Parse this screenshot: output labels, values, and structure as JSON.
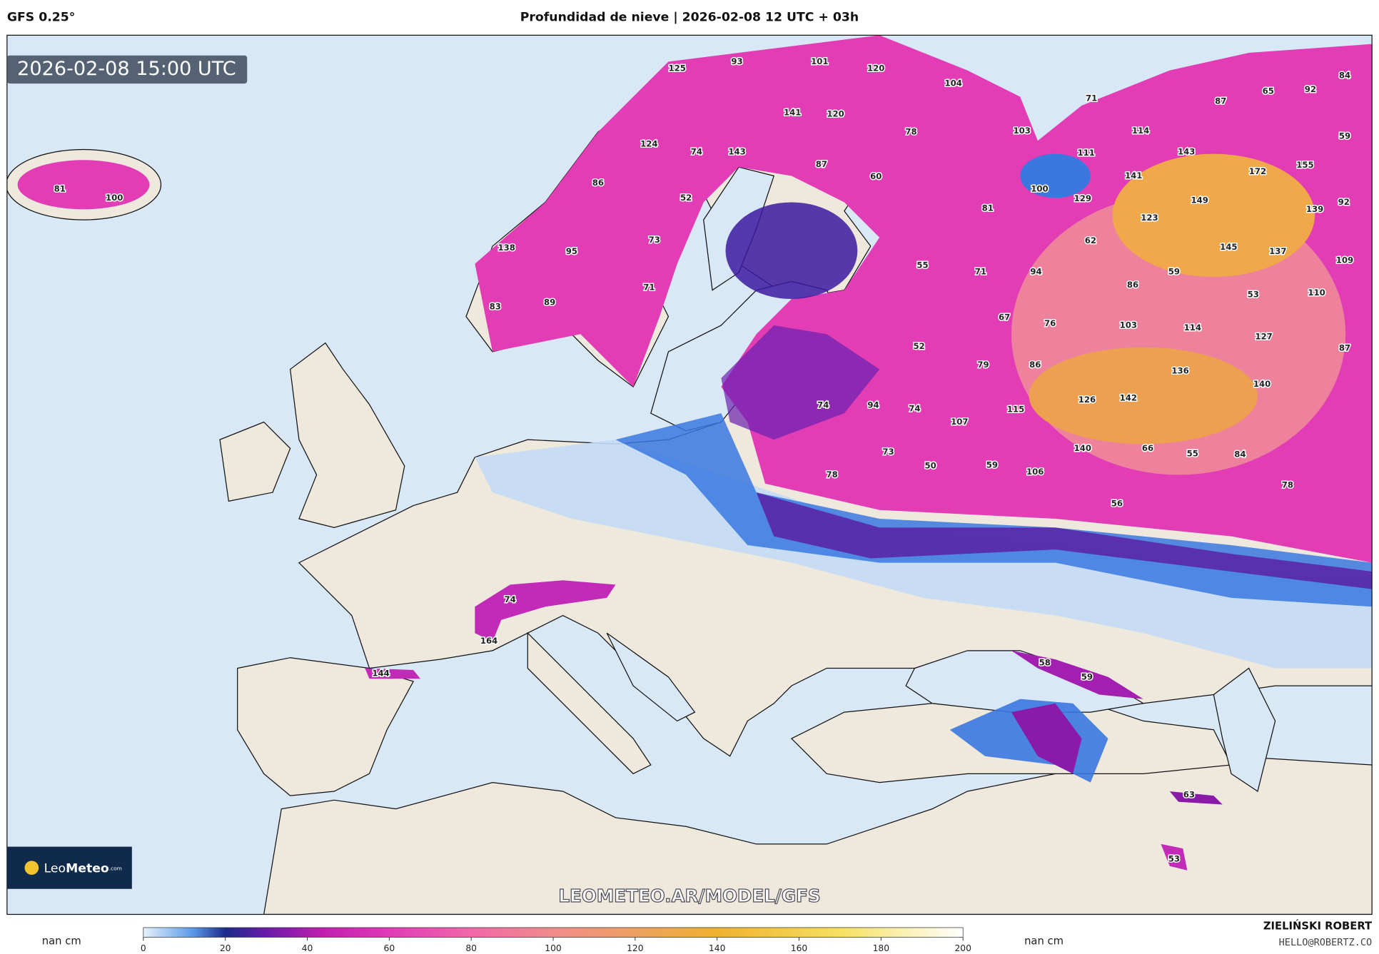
{
  "header": {
    "model": "GFS 0.25°",
    "title": "Profundidad de nieve | 2026-02-08 12 UTC + 03h"
  },
  "timestamp": "2026-02-08 15:00 UTC",
  "logo": {
    "part1": "Leo",
    "part2": "Meteo",
    "part3": ".com"
  },
  "watermark": "LEOMETEO.AR/MODEL/GFS",
  "map_labels": [
    125,
    93,
    101,
    120,
    104,
    71,
    65,
    92,
    84,
    87,
    141,
    120,
    78,
    103,
    114,
    59,
    124,
    74,
    143,
    87,
    111,
    143,
    172,
    155,
    81,
    100,
    86,
    60,
    100,
    141,
    52,
    81,
    129,
    149,
    139,
    92,
    123,
    73,
    62,
    138,
    95,
    145,
    137,
    109,
    55,
    71,
    94,
    59,
    71,
    86,
    53,
    110,
    83,
    89,
    67,
    76,
    103,
    114,
    127,
    52,
    87,
    79,
    86,
    136,
    140,
    74,
    94,
    74,
    115,
    126,
    142,
    107,
    73,
    50,
    59,
    140,
    66,
    55,
    84,
    106,
    78,
    78,
    56,
    74,
    164,
    144,
    58,
    59,
    63,
    53
  ],
  "colorbar": {
    "unit_left": "nan cm",
    "unit_right": "nan cm",
    "lim": [
      0,
      200
    ],
    "ticks": [
      0,
      20,
      40,
      60,
      80,
      100,
      120,
      140,
      160,
      180,
      200
    ]
  },
  "credit": {
    "name": "ZIELIŃSKI ROBERT",
    "email": "HELLO@ROBERTZ.CO"
  }
}
